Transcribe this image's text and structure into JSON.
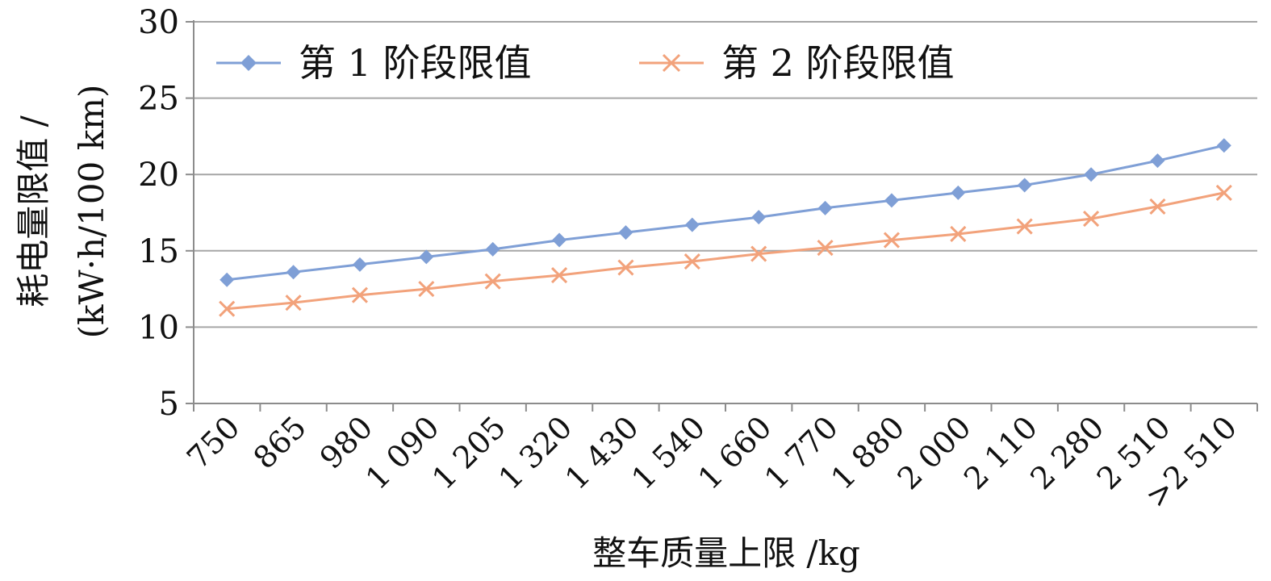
{
  "chart_data": {
    "type": "line",
    "categories": [
      "750",
      "865",
      "980",
      "1 090",
      "1 205",
      "1 320",
      "1 430",
      "1 540",
      "1 660",
      "1 770",
      "1 880",
      "2 000",
      "2 110",
      "2 280",
      "2 510",
      ">2 510"
    ],
    "series": [
      {
        "name": "第 1 阶段限值",
        "color": "#7f9fd6",
        "marker": "diamond",
        "values": [
          13.1,
          13.6,
          14.1,
          14.6,
          15.1,
          15.7,
          16.2,
          16.7,
          17.2,
          17.8,
          18.3,
          18.8,
          19.3,
          20.0,
          20.9,
          21.9
        ]
      },
      {
        "name": "第 2 阶段限值",
        "color": "#f2a27b",
        "marker": "x",
        "values": [
          11.2,
          11.6,
          12.1,
          12.5,
          13.0,
          13.4,
          13.9,
          14.3,
          14.8,
          15.2,
          15.7,
          16.1,
          16.6,
          17.1,
          17.9,
          18.8
        ]
      }
    ],
    "title": "",
    "xlabel": "整车质量上限 /kg",
    "ylabel_line1": "耗电量限值 /",
    "ylabel_line2": "(kW·h/100 km)",
    "ylim": [
      5,
      30
    ],
    "yticks": [
      5,
      10,
      15,
      20,
      25,
      30
    ],
    "grid": true,
    "legend_position": "top-left"
  }
}
